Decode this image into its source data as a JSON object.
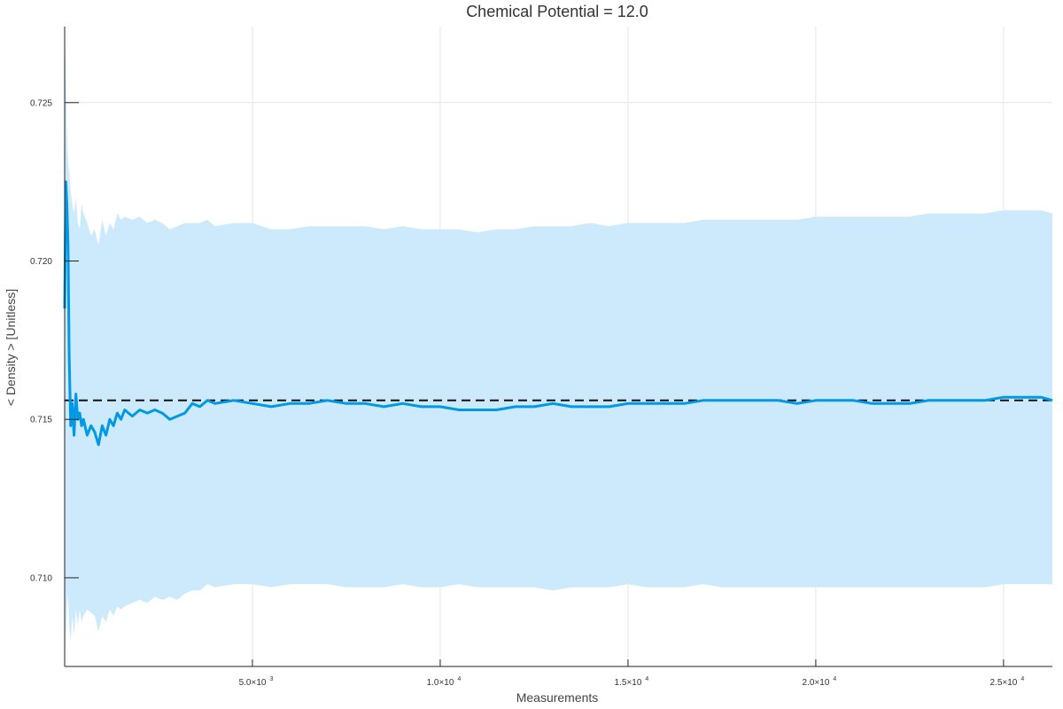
{
  "chart_data": {
    "type": "line",
    "title": "Chemical Potential = 12.0",
    "xlabel": "Measurements",
    "ylabel": "< Density > [Unitless]",
    "xlim": [
      0,
      26300
    ],
    "ylim": [
      0.7072,
      0.7274
    ],
    "grid": true,
    "legend": "none",
    "colors": {
      "line": "#0099e6",
      "band": "#cde9fc",
      "reference": "#111111",
      "grid": "#e6e6e6",
      "axis": "#222222"
    },
    "x_ticks": [
      {
        "value": 5000,
        "mantissa": "5.0×10",
        "exp": "3"
      },
      {
        "value": 10000,
        "mantissa": "1.0×10",
        "exp": "4"
      },
      {
        "value": 15000,
        "mantissa": "1.5×10",
        "exp": "4"
      },
      {
        "value": 20000,
        "mantissa": "2.0×10",
        "exp": "4"
      },
      {
        "value": 25000,
        "mantissa": "2.5×10",
        "exp": "4"
      }
    ],
    "y_ticks": [
      {
        "value": 0.71,
        "label": "0.710"
      },
      {
        "value": 0.715,
        "label": "0.715"
      },
      {
        "value": 0.72,
        "label": "0.720"
      },
      {
        "value": 0.725,
        "label": "0.725"
      }
    ],
    "reference_line": {
      "y": 0.7156,
      "style": "dashed"
    },
    "series": [
      {
        "x": [
          0,
          30,
          60,
          90,
          120,
          160,
          200,
          250,
          300,
          350,
          400,
          450,
          500,
          600,
          700,
          800,
          900,
          1000,
          1100,
          1200,
          1300,
          1400,
          1500,
          1600,
          1800,
          2000,
          2200,
          2400,
          2600,
          2800,
          3000,
          3200,
          3400,
          3600,
          3800,
          4000,
          4500,
          5000,
          5500,
          6000,
          6500,
          7000,
          7500,
          8000,
          8500,
          9000,
          9500,
          10000,
          10500,
          11000,
          11500,
          12000,
          12500,
          13000,
          13500,
          14000,
          14500,
          15000,
          15500,
          16000,
          16500,
          17000,
          17500,
          18000,
          18500,
          19000,
          19500,
          20000,
          20500,
          21000,
          21500,
          22000,
          22500,
          23000,
          23500,
          24000,
          24500,
          25000,
          25500,
          26000,
          26300
        ],
        "y": [
          0.7185,
          0.7225,
          0.7218,
          0.7205,
          0.717,
          0.7148,
          0.7155,
          0.7145,
          0.7158,
          0.715,
          0.7152,
          0.7148,
          0.715,
          0.7145,
          0.7148,
          0.7146,
          0.7142,
          0.7148,
          0.7145,
          0.715,
          0.7148,
          0.7152,
          0.715,
          0.7153,
          0.7151,
          0.7153,
          0.7152,
          0.7153,
          0.7152,
          0.715,
          0.7151,
          0.7152,
          0.7155,
          0.7154,
          0.7156,
          0.7155,
          0.7156,
          0.7155,
          0.7154,
          0.7155,
          0.7155,
          0.7156,
          0.7155,
          0.7155,
          0.7154,
          0.7155,
          0.7154,
          0.7154,
          0.7153,
          0.7153,
          0.7153,
          0.7154,
          0.7154,
          0.7155,
          0.7154,
          0.7154,
          0.7154,
          0.7155,
          0.7155,
          0.7155,
          0.7155,
          0.7156,
          0.7156,
          0.7156,
          0.7156,
          0.7156,
          0.7155,
          0.7156,
          0.7156,
          0.7156,
          0.7155,
          0.7155,
          0.7155,
          0.7156,
          0.7156,
          0.7156,
          0.7156,
          0.7157,
          0.7157,
          0.7157,
          0.7156
        ],
        "upper": [
          0.727,
          0.7262,
          0.724,
          0.7232,
          0.7228,
          0.7222,
          0.7218,
          0.7215,
          0.722,
          0.7212,
          0.721,
          0.7218,
          0.7215,
          0.7212,
          0.7208,
          0.721,
          0.7205,
          0.7213,
          0.7208,
          0.7212,
          0.721,
          0.7215,
          0.7213,
          0.7214,
          0.7213,
          0.7214,
          0.7212,
          0.7213,
          0.7212,
          0.721,
          0.7211,
          0.7212,
          0.7212,
          0.7212,
          0.7213,
          0.7211,
          0.7212,
          0.7212,
          0.721,
          0.721,
          0.7211,
          0.7211,
          0.7211,
          0.7211,
          0.721,
          0.7211,
          0.721,
          0.721,
          0.721,
          0.7209,
          0.721,
          0.721,
          0.7211,
          0.7211,
          0.7211,
          0.7212,
          0.7211,
          0.7212,
          0.7212,
          0.7212,
          0.7212,
          0.7213,
          0.7213,
          0.7213,
          0.7213,
          0.7213,
          0.7213,
          0.7214,
          0.7214,
          0.7214,
          0.7214,
          0.7214,
          0.7214,
          0.7215,
          0.7215,
          0.7215,
          0.7215,
          0.7216,
          0.7216,
          0.7216,
          0.7215
        ],
        "lower": [
          0.711,
          0.7078,
          0.709,
          0.7095,
          0.7085,
          0.708,
          0.7088,
          0.7082,
          0.709,
          0.7085,
          0.709,
          0.7086,
          0.7088,
          0.709,
          0.7089,
          0.7088,
          0.7083,
          0.7088,
          0.7086,
          0.709,
          0.7088,
          0.7091,
          0.709,
          0.7091,
          0.7092,
          0.7093,
          0.7092,
          0.7094,
          0.7093,
          0.7094,
          0.7093,
          0.7095,
          0.7096,
          0.7096,
          0.7098,
          0.7097,
          0.7098,
          0.7098,
          0.7097,
          0.7098,
          0.7098,
          0.7098,
          0.7097,
          0.7097,
          0.7097,
          0.7098,
          0.7097,
          0.7097,
          0.7098,
          0.7097,
          0.7097,
          0.7097,
          0.7097,
          0.7096,
          0.7097,
          0.7097,
          0.7097,
          0.7098,
          0.7097,
          0.7097,
          0.7097,
          0.7098,
          0.7097,
          0.7097,
          0.7097,
          0.7097,
          0.7097,
          0.7097,
          0.7097,
          0.7097,
          0.7097,
          0.7097,
          0.7097,
          0.7097,
          0.7097,
          0.7097,
          0.7097,
          0.7098,
          0.7098,
          0.7098,
          0.7098
        ]
      }
    ]
  }
}
